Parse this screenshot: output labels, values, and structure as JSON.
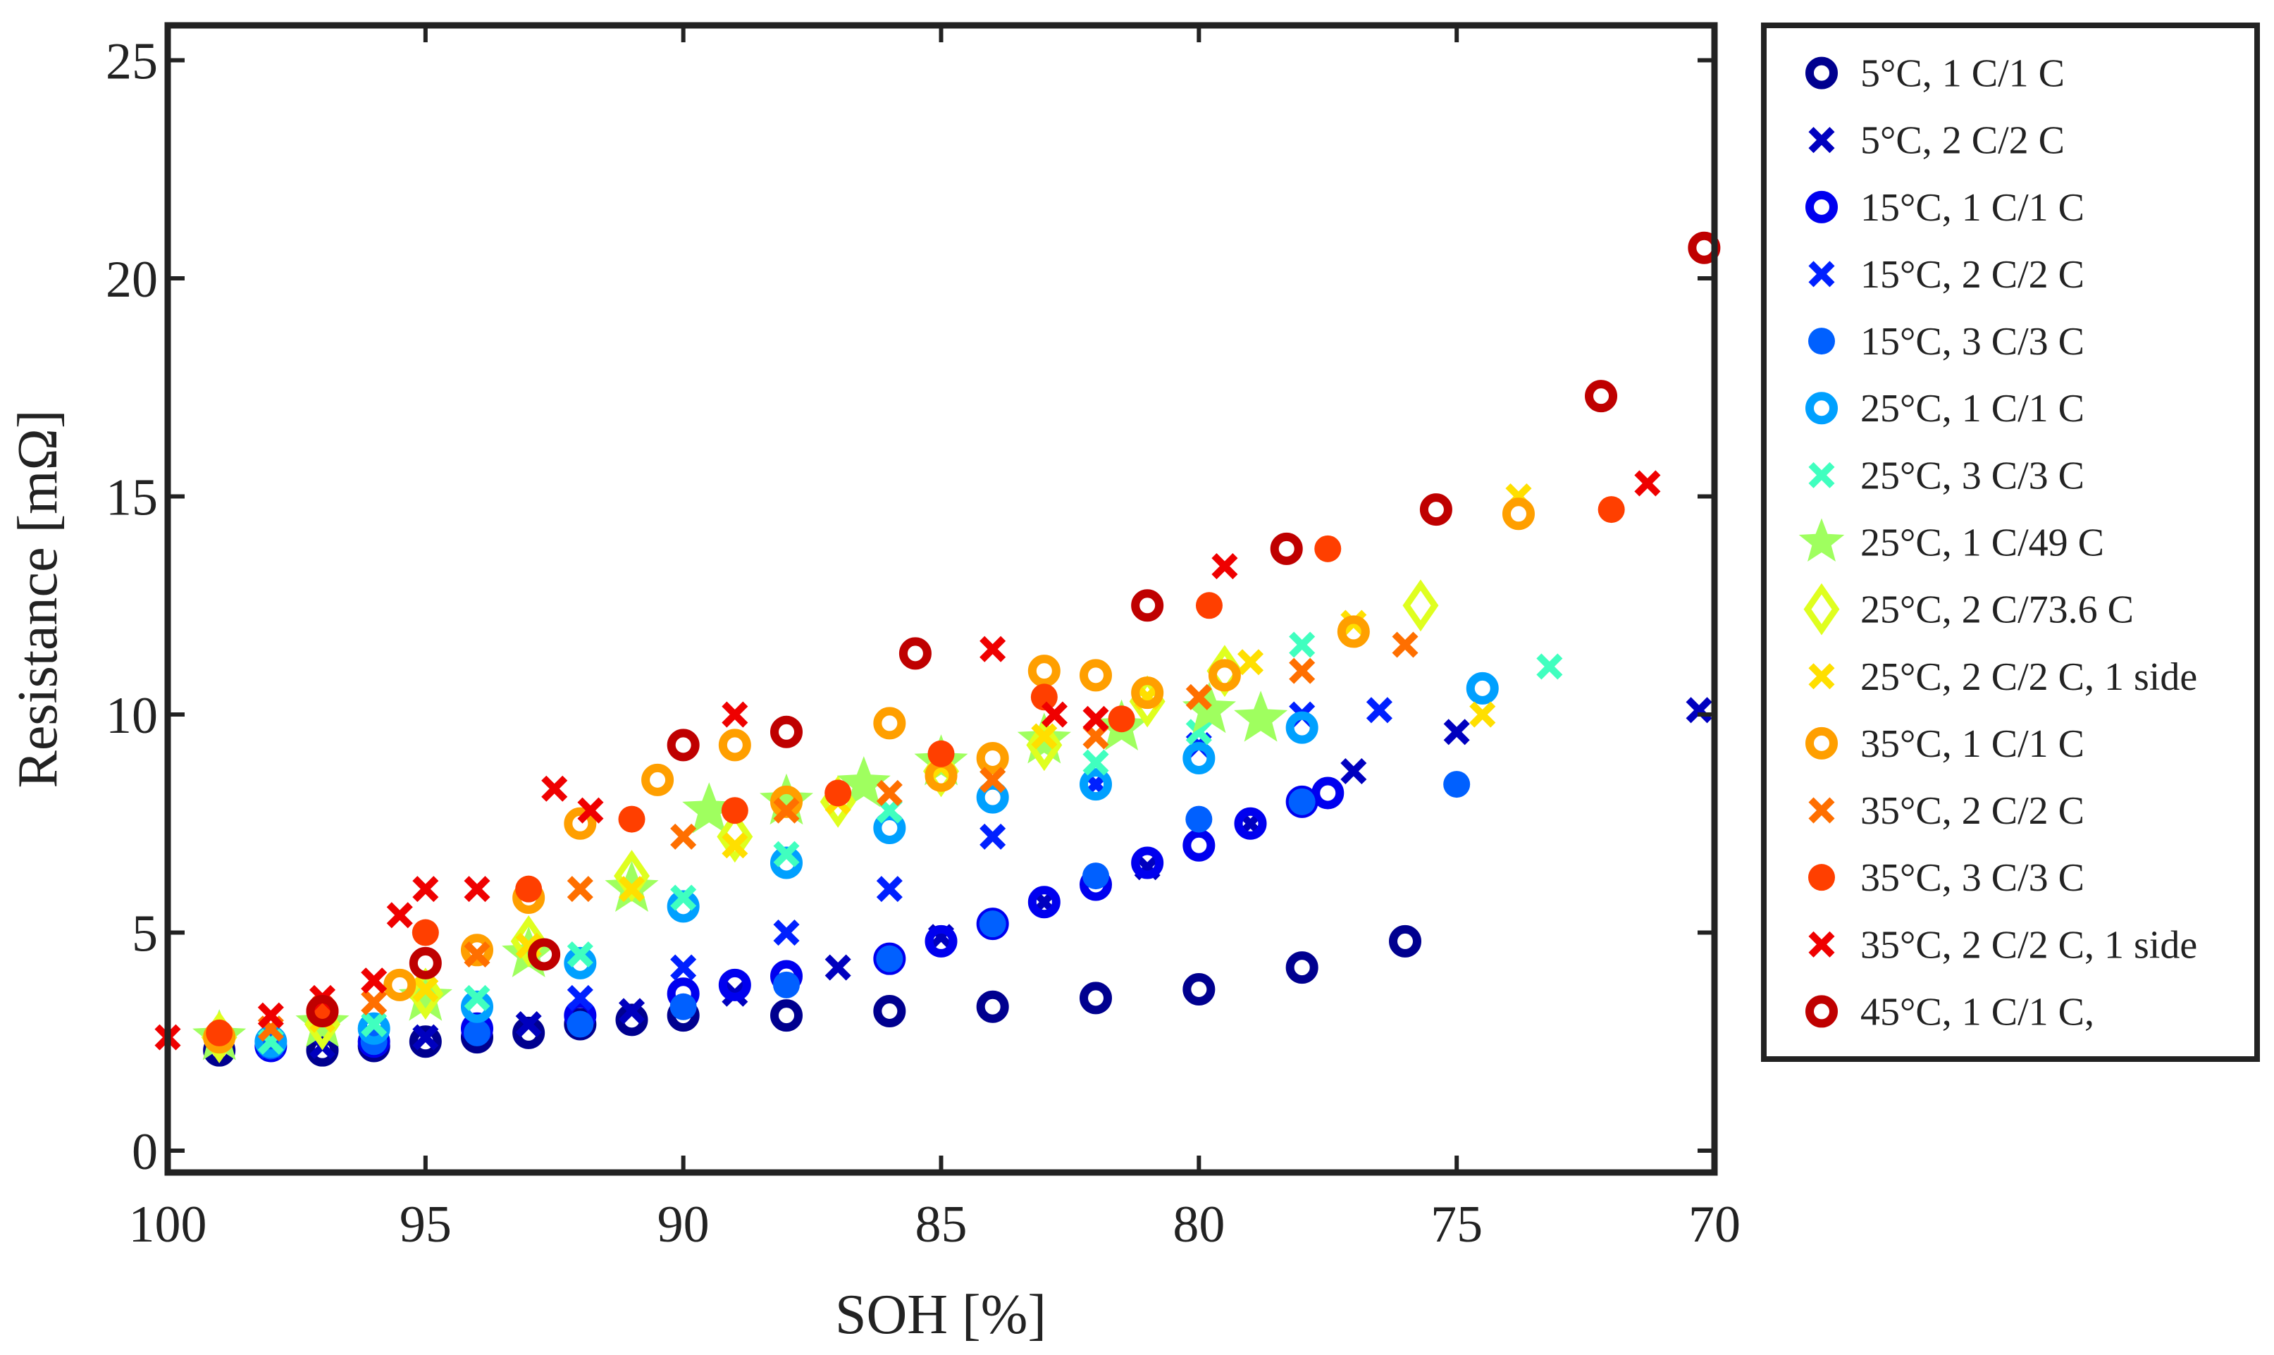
{
  "chart_data": {
    "type": "scatter",
    "title": "",
    "xlabel": "SOH [%]",
    "ylabel": "Resistance [mΩ]",
    "xlim": [
      100,
      70
    ],
    "ylim": [
      -0.5,
      25.8
    ],
    "x_reversed": true,
    "xticks": [
      100,
      95,
      90,
      85,
      80,
      75,
      70
    ],
    "yticks": [
      0,
      5,
      10,
      15,
      20,
      25
    ],
    "grid": false,
    "legend_position": "outside-right",
    "series": [
      {
        "name": "5°C, 1 C/1 C",
        "color": "#00008f",
        "marker": "ring",
        "x": [
          99,
          97,
          96,
          95,
          94,
          93,
          92,
          91,
          90,
          88,
          86,
          84,
          82,
          80,
          78,
          76
        ],
        "y": [
          2.3,
          2.3,
          2.4,
          2.5,
          2.6,
          2.7,
          2.9,
          3.0,
          3.1,
          3.1,
          3.2,
          3.3,
          3.5,
          3.7,
          4.2,
          4.8
        ]
      },
      {
        "name": "5°C, 2 C/2 C",
        "color": "#0000bf",
        "marker": "cross",
        "x": [
          97,
          95,
          93,
          91,
          89,
          87,
          85,
          83,
          81,
          79,
          77,
          75,
          70.3
        ],
        "y": [
          2.4,
          2.6,
          2.9,
          3.2,
          3.6,
          4.2,
          4.9,
          5.7,
          6.5,
          7.5,
          8.7,
          9.6,
          10.1
        ]
      },
      {
        "name": "15°C, 1 C/1 C",
        "color": "#0000ef",
        "marker": "ring",
        "x": [
          98,
          96,
          94,
          92,
          90,
          89,
          88,
          86,
          85,
          84,
          83,
          82,
          81,
          80,
          79,
          78,
          77.5
        ],
        "y": [
          2.4,
          2.5,
          2.8,
          3.1,
          3.6,
          3.8,
          4.0,
          4.4,
          4.8,
          5.2,
          5.7,
          6.1,
          6.6,
          7.0,
          7.5,
          8.0,
          8.2
        ]
      },
      {
        "name": "15°C, 2 C/2 C",
        "color": "#0020ff",
        "marker": "cross",
        "x": [
          98,
          96,
          94,
          92,
          90,
          88,
          86,
          84,
          82,
          80,
          78,
          76.5
        ],
        "y": [
          2.4,
          2.6,
          2.9,
          3.5,
          4.2,
          5.0,
          6.0,
          7.2,
          8.4,
          9.3,
          10.0,
          10.1
        ]
      },
      {
        "name": "15°C, 3 C/3 C",
        "color": "#0060ff",
        "marker": "dot",
        "x": [
          98,
          96,
          94,
          92,
          90,
          88,
          86,
          84,
          82,
          80,
          78,
          75
        ],
        "y": [
          2.4,
          2.5,
          2.7,
          2.9,
          3.3,
          3.8,
          4.4,
          5.2,
          6.3,
          7.6,
          8.0,
          8.4
        ]
      },
      {
        "name": "25°C, 1 C/1 C",
        "color": "#00a0ff",
        "marker": "ring",
        "x": [
          98,
          96,
          94,
          92,
          90,
          88,
          86,
          84,
          82,
          80,
          78,
          74.5
        ],
        "y": [
          2.5,
          2.8,
          3.3,
          4.3,
          5.6,
          6.6,
          7.4,
          8.1,
          8.4,
          9.0,
          9.7,
          10.6
        ]
      },
      {
        "name": "25°C, 3 C/3 C",
        "color": "#40ffbf",
        "marker": "cross",
        "x": [
          98,
          96,
          94,
          92,
          90,
          88,
          86,
          84,
          82,
          80,
          78,
          73.2
        ],
        "y": [
          2.5,
          2.9,
          3.5,
          4.5,
          5.8,
          6.8,
          7.8,
          8.5,
          8.9,
          9.6,
          11.6,
          11.1
        ]
      },
      {
        "name": "25°C, 1 C/49 C",
        "color": "#9fff5f",
        "marker": "star",
        "x": [
          99,
          97,
          95,
          93,
          91,
          89.5,
          88,
          86.5,
          85,
          83,
          81.5,
          79.8,
          78.8
        ],
        "y": [
          2.6,
          2.9,
          3.5,
          4.5,
          6.0,
          7.8,
          8.0,
          8.4,
          8.9,
          9.4,
          9.7,
          10.1,
          9.9
        ]
      },
      {
        "name": "25°C, 2 C/73.6 C",
        "color": "#dfff1f",
        "marker": "diamond",
        "x": [
          99,
          97,
          95,
          93,
          91,
          89,
          87,
          85,
          83,
          81,
          79.5,
          75.7
        ],
        "y": [
          2.6,
          2.9,
          3.6,
          4.8,
          6.3,
          7.2,
          8.0,
          8.7,
          9.3,
          10.3,
          11.0,
          12.5
        ]
      },
      {
        "name": "25°C, 2 C/2 C, 1 side",
        "color": "#ffdf00",
        "marker": "cross",
        "x": [
          99,
          97,
          95,
          93,
          91,
          89,
          87,
          85,
          83,
          81,
          79,
          77,
          74.5,
          73.8
        ],
        "y": [
          2.6,
          3.0,
          3.7,
          4.7,
          6.0,
          7.0,
          8.0,
          8.8,
          9.5,
          10.4,
          11.2,
          12.1,
          10.0,
          15.0
        ]
      },
      {
        "name": "35°C, 1 C/1 C",
        "color": "#ff9f00",
        "marker": "ring",
        "x": [
          99,
          97,
          95.5,
          94,
          93,
          92,
          90.5,
          89,
          88,
          86,
          85,
          84,
          83,
          82,
          81,
          79.5,
          77,
          73.8
        ],
        "y": [
          2.6,
          3.2,
          3.8,
          4.6,
          5.8,
          7.5,
          8.5,
          9.3,
          8.0,
          9.8,
          8.6,
          9.0,
          11.0,
          10.9,
          10.5,
          10.9,
          11.9,
          14.6
        ]
      },
      {
        "name": "35°C, 2 C/2 C",
        "color": "#ff6f00",
        "marker": "cross",
        "x": [
          98,
          96,
          94,
          92,
          90,
          88,
          86,
          84,
          82,
          80,
          78,
          76
        ],
        "y": [
          2.8,
          3.4,
          4.5,
          6.0,
          7.2,
          7.8,
          8.2,
          8.5,
          9.5,
          10.4,
          11.0,
          11.6
        ]
      },
      {
        "name": "35°C, 3 C/3 C",
        "color": "#ff3f00",
        "marker": "dot",
        "x": [
          99,
          97,
          95,
          93,
          91,
          89,
          87,
          85,
          83,
          81.5,
          79.8,
          77.5,
          72
        ],
        "y": [
          2.7,
          3.3,
          5.0,
          6.0,
          7.6,
          7.8,
          8.2,
          9.1,
          10.4,
          9.9,
          12.5,
          13.8,
          14.7
        ]
      },
      {
        "name": "35°C, 2 C/2 C, 1 side",
        "color": "#ef0000",
        "marker": "cross",
        "x": [
          100,
          98,
          97,
          96,
          95.5,
          95,
          94,
          92.5,
          91.8,
          89,
          84,
          82.8,
          82,
          79.5,
          71.3
        ],
        "y": [
          2.6,
          3.1,
          3.5,
          3.9,
          5.4,
          6.0,
          6.0,
          8.3,
          7.8,
          10.0,
          11.5,
          10.0,
          9.9,
          13.4,
          15.3
        ]
      },
      {
        "name": "45°C, 1 C/1 C,",
        "color": "#bf0000",
        "marker": "ring",
        "x": [
          97,
          95,
          92.7,
          90,
          88,
          85.5,
          81,
          78.3,
          75.4,
          72.2,
          70.2
        ],
        "y": [
          3.2,
          4.3,
          4.5,
          9.3,
          9.6,
          11.4,
          12.5,
          13.8,
          14.7,
          17.3,
          20.7
        ]
      }
    ]
  }
}
